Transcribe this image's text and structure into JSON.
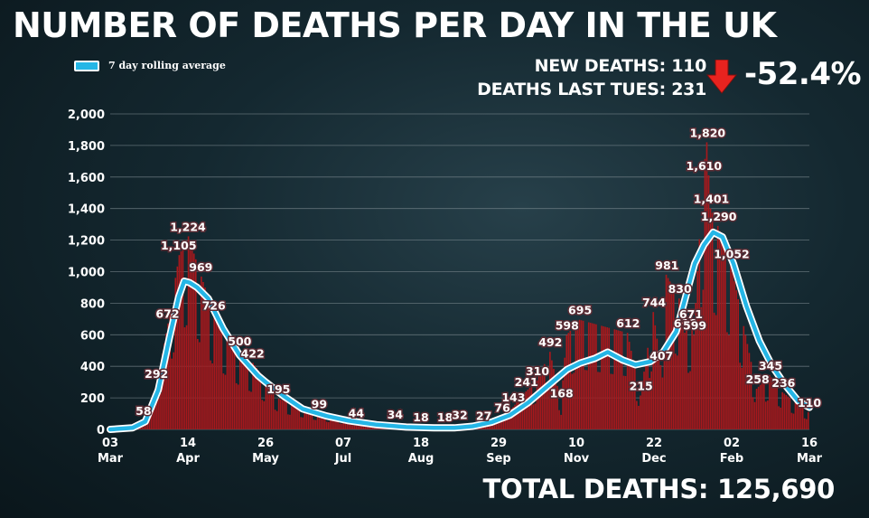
{
  "page": {
    "title": "NUMBER OF DEATHS PER DAY IN THE UK",
    "legend_label": "7 day rolling average",
    "new_deaths_text": "NEW DEATHS: 110",
    "deaths_last_tues_text": "DEATHS LAST TUES: 231",
    "change_text": "-52.4%",
    "total_text": "TOTAL DEATHS: 125,690",
    "colors": {
      "bar": "#a8181c",
      "line": "#25b6e6",
      "line_outline": "#ffffff",
      "arrow": "#e8231f",
      "grid": "#7f8c92"
    }
  },
  "chart_data": {
    "type": "bar",
    "title": "NUMBER OF DEATHS PER DAY IN THE UK",
    "xlabel": "",
    "ylabel": "",
    "ylim": [
      0,
      2000
    ],
    "yticks": [
      0,
      200,
      400,
      600,
      800,
      1000,
      1200,
      1400,
      1600,
      1800,
      2000
    ],
    "ytick_labels": [
      "0",
      "200",
      "400",
      "600",
      "800",
      "1,000",
      "1,200",
      "1,400",
      "1,600",
      "1,800",
      "2,000"
    ],
    "x_start": "2020-03-03",
    "x_end": "2021-03-16",
    "xticks": [
      {
        "date": "2020-03-03",
        "day": "03",
        "month": "Mar"
      },
      {
        "date": "2020-04-14",
        "day": "14",
        "month": "Apr"
      },
      {
        "date": "2020-05-26",
        "day": "26",
        "month": "May"
      },
      {
        "date": "2020-07-07",
        "day": "07",
        "month": "Jul"
      },
      {
        "date": "2020-08-18",
        "day": "18",
        "month": "Aug"
      },
      {
        "date": "2020-09-29",
        "day": "29",
        "month": "Sep"
      },
      {
        "date": "2020-11-10",
        "day": "10",
        "month": "Nov"
      },
      {
        "date": "2020-12-22",
        "day": "22",
        "month": "Dec"
      },
      {
        "date": "2021-02-02",
        "day": "02",
        "month": "Feb"
      },
      {
        "date": "2021-03-16",
        "day": "16",
        "month": "Mar"
      }
    ],
    "grid": true,
    "legend_position": "top-left",
    "series": [
      {
        "name": "7 day rolling average",
        "type": "line",
        "points": [
          [
            "2020-03-03",
            0
          ],
          [
            "2020-03-15",
            10
          ],
          [
            "2020-03-22",
            50
          ],
          [
            "2020-03-29",
            250
          ],
          [
            "2020-04-04",
            580
          ],
          [
            "2020-04-09",
            840
          ],
          [
            "2020-04-12",
            940
          ],
          [
            "2020-04-15",
            930
          ],
          [
            "2020-04-19",
            900
          ],
          [
            "2020-04-25",
            830
          ],
          [
            "2020-05-03",
            640
          ],
          [
            "2020-05-12",
            470
          ],
          [
            "2020-05-22",
            340
          ],
          [
            "2020-05-26",
            300
          ],
          [
            "2020-06-05",
            210
          ],
          [
            "2020-06-15",
            130
          ],
          [
            "2020-06-28",
            85
          ],
          [
            "2020-07-10",
            55
          ],
          [
            "2020-07-25",
            30
          ],
          [
            "2020-08-10",
            15
          ],
          [
            "2020-08-25",
            10
          ],
          [
            "2020-09-05",
            10
          ],
          [
            "2020-09-15",
            20
          ],
          [
            "2020-09-25",
            45
          ],
          [
            "2020-10-05",
            90
          ],
          [
            "2020-10-15",
            170
          ],
          [
            "2020-10-25",
            270
          ],
          [
            "2020-11-05",
            380
          ],
          [
            "2020-11-12",
            420
          ],
          [
            "2020-11-20",
            450
          ],
          [
            "2020-11-27",
            490
          ],
          [
            "2020-12-05",
            440
          ],
          [
            "2020-12-12",
            410
          ],
          [
            "2020-12-20",
            430
          ],
          [
            "2020-12-27",
            490
          ],
          [
            "2021-01-03",
            620
          ],
          [
            "2021-01-09",
            880
          ],
          [
            "2021-01-13",
            1050
          ],
          [
            "2021-01-18",
            1170
          ],
          [
            "2021-01-23",
            1250
          ],
          [
            "2021-01-28",
            1220
          ],
          [
            "2021-02-03",
            1050
          ],
          [
            "2021-02-10",
            780
          ],
          [
            "2021-02-17",
            560
          ],
          [
            "2021-02-24",
            400
          ],
          [
            "2021-03-03",
            280
          ],
          [
            "2021-03-10",
            180
          ],
          [
            "2021-03-16",
            140
          ]
        ]
      }
    ],
    "daily_deaths_profile": [
      [
        "2020-03-03",
        0
      ],
      [
        "2020-03-15",
        10
      ],
      [
        "2020-03-21",
        58
      ],
      [
        "2020-03-28",
        292
      ],
      [
        "2020-04-03",
        672
      ],
      [
        "2020-04-09",
        1105
      ],
      [
        "2020-04-14",
        1224
      ],
      [
        "2020-04-21",
        969
      ],
      [
        "2020-04-28",
        726
      ],
      [
        "2020-05-12",
        500
      ],
      [
        "2020-05-19",
        422
      ],
      [
        "2020-06-02",
        195
      ],
      [
        "2020-06-24",
        99
      ],
      [
        "2020-07-14",
        44
      ],
      [
        "2020-08-04",
        34
      ],
      [
        "2020-08-18",
        18
      ],
      [
        "2020-08-31",
        18
      ],
      [
        "2020-09-08",
        32
      ],
      [
        "2020-09-21",
        27
      ],
      [
        "2020-10-01",
        76
      ],
      [
        "2020-10-07",
        143
      ],
      [
        "2020-10-14",
        241
      ],
      [
        "2020-10-20",
        310
      ],
      [
        "2020-10-27",
        492
      ],
      [
        "2020-11-02",
        168
      ],
      [
        "2020-11-05",
        598
      ],
      [
        "2020-11-12",
        695
      ],
      [
        "2020-12-08",
        612
      ],
      [
        "2020-12-15",
        215
      ],
      [
        "2020-12-22",
        744
      ],
      [
        "2020-12-26",
        407
      ],
      [
        "2020-12-29",
        981
      ],
      [
        "2021-01-05",
        830
      ],
      [
        "2021-01-08",
        613
      ],
      [
        "2021-01-11",
        671
      ],
      [
        "2021-01-13",
        599
      ],
      [
        "2021-01-18",
        1610
      ],
      [
        "2021-01-20",
        1820
      ],
      [
        "2021-01-22",
        1401
      ],
      [
        "2021-01-26",
        1290
      ],
      [
        "2021-02-02",
        1052
      ],
      [
        "2021-02-16",
        258
      ],
      [
        "2021-02-23",
        345
      ],
      [
        "2021-03-02",
        236
      ],
      [
        "2021-03-16",
        110
      ]
    ],
    "annotations": [
      {
        "date": "2020-03-21",
        "value": 58,
        "label": "58"
      },
      {
        "date": "2020-03-28",
        "value": 292,
        "label": "292"
      },
      {
        "date": "2020-04-03",
        "value": 672,
        "label": "672"
      },
      {
        "date": "2020-04-09",
        "value": 1105,
        "label": "1,105"
      },
      {
        "date": "2020-04-14",
        "value": 1224,
        "label": "1,224"
      },
      {
        "date": "2020-04-21",
        "value": 969,
        "label": "969"
      },
      {
        "date": "2020-04-28",
        "value": 726,
        "label": "726"
      },
      {
        "date": "2020-05-12",
        "value": 500,
        "label": "500"
      },
      {
        "date": "2020-05-19",
        "value": 422,
        "label": "422"
      },
      {
        "date": "2020-06-02",
        "value": 195,
        "label": "195"
      },
      {
        "date": "2020-06-24",
        "value": 99,
        "label": "99"
      },
      {
        "date": "2020-07-14",
        "value": 44,
        "label": "44"
      },
      {
        "date": "2020-08-04",
        "value": 34,
        "label": "34"
      },
      {
        "date": "2020-08-18",
        "value": 18,
        "label": "18"
      },
      {
        "date": "2020-08-31",
        "value": 18,
        "label": "18"
      },
      {
        "date": "2020-09-08",
        "value": 32,
        "label": "32"
      },
      {
        "date": "2020-09-21",
        "value": 27,
        "label": "27"
      },
      {
        "date": "2020-10-01",
        "value": 76,
        "label": "76"
      },
      {
        "date": "2020-10-07",
        "value": 143,
        "label": "143"
      },
      {
        "date": "2020-10-14",
        "value": 241,
        "label": "241"
      },
      {
        "date": "2020-10-20",
        "value": 310,
        "label": "310"
      },
      {
        "date": "2020-10-27",
        "value": 492,
        "label": "492"
      },
      {
        "date": "2020-11-02",
        "value": 168,
        "label": "168"
      },
      {
        "date": "2020-11-05",
        "value": 598,
        "label": "598"
      },
      {
        "date": "2020-11-12",
        "value": 695,
        "label": "695"
      },
      {
        "date": "2020-12-08",
        "value": 612,
        "label": "612"
      },
      {
        "date": "2020-12-15",
        "value": 215,
        "label": "215"
      },
      {
        "date": "2020-12-22",
        "value": 744,
        "label": "744"
      },
      {
        "date": "2020-12-26",
        "value": 407,
        "label": "407"
      },
      {
        "date": "2020-12-29",
        "value": 981,
        "label": "981"
      },
      {
        "date": "2021-01-05",
        "value": 830,
        "label": "830"
      },
      {
        "date": "2021-01-08",
        "value": 613,
        "label": "613"
      },
      {
        "date": "2021-01-11",
        "value": 671,
        "label": "671"
      },
      {
        "date": "2021-01-13",
        "value": 599,
        "label": "599"
      },
      {
        "date": "2021-01-18",
        "value": 1610,
        "label": "1,610"
      },
      {
        "date": "2021-01-20",
        "value": 1820,
        "label": "1,820"
      },
      {
        "date": "2021-01-22",
        "value": 1401,
        "label": "1,401"
      },
      {
        "date": "2021-01-26",
        "value": 1290,
        "label": "1,290"
      },
      {
        "date": "2021-02-02",
        "value": 1052,
        "label": "1,052"
      },
      {
        "date": "2021-02-16",
        "value": 258,
        "label": "258"
      },
      {
        "date": "2021-02-23",
        "value": 345,
        "label": "345"
      },
      {
        "date": "2021-03-02",
        "value": 236,
        "label": "236"
      },
      {
        "date": "2021-03-16",
        "value": 110,
        "label": "110"
      }
    ]
  }
}
